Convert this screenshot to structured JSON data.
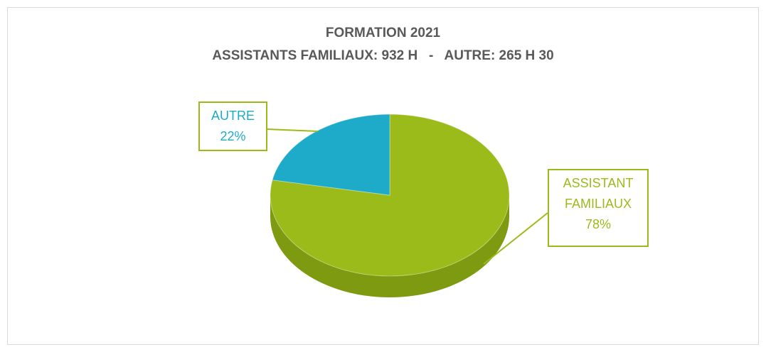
{
  "chart_data": {
    "type": "pie",
    "title": "FORMATION 2021",
    "subtitle": "ASSISTANTS FAMILIAUX: 932 H   -   AUTRE: 265 H 30",
    "categories": [
      "ASSISTANT FAMILIAUX",
      "AUTRE"
    ],
    "values": [
      78,
      22
    ],
    "value_labels": [
      "78%",
      "22%"
    ],
    "colors": [
      "#9bbb1a",
      "#1eabc9"
    ]
  }
}
